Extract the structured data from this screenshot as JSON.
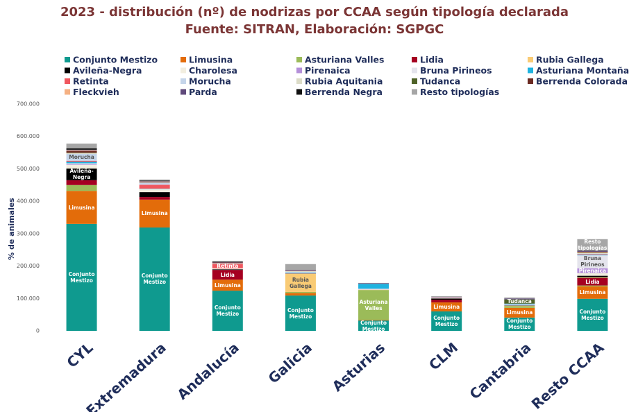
{
  "chart_data": {
    "type": "stacked_bar",
    "title": "2023 - distribución (nº) de nodrizas por CCAA según tipología declarada",
    "subtitle": "Fuente: SITRAN, Elaboración: SGPGC",
    "y_label": "% de animales",
    "categories": [
      "CYL",
      "Extremadura",
      "Andalucía",
      "Galicia",
      "Asturias",
      "CLM",
      "Cantabria",
      "Resto CCAA"
    ],
    "ylim": [
      0,
      700000
    ],
    "yticks": [
      {
        "value": 0,
        "label": "0"
      },
      {
        "value": 100000,
        "label": "100.000"
      },
      {
        "value": 200000,
        "label": "200.000"
      },
      {
        "value": 300000,
        "label": "300.000"
      },
      {
        "value": 400000,
        "label": "400.000"
      },
      {
        "value": 500000,
        "label": "500.000"
      },
      {
        "value": 600000,
        "label": "600.000"
      },
      {
        "value": 700000,
        "label": "700.000"
      }
    ],
    "grid": false,
    "legend": "top",
    "series": [
      {
        "name": "Conjunto Mestizo",
        "color": "#0f9a8f",
        "values": [
          330000,
          319000,
          124000,
          109000,
          32000,
          60000,
          41000,
          99000
        ],
        "segment_labels": [
          "Conjunto Mestizo",
          "Conjunto Mestizo",
          "Conjunto Mestizo",
          "Conjunto Mestizo",
          "Conjunto Mestizo",
          "Conjunto Mestizo",
          "Conjunto Mestizo",
          "Conjunto Mestizo"
        ]
      },
      {
        "name": "Limusina",
        "color": "#e36c0a",
        "values": [
          102000,
          86000,
          34000,
          8000,
          2000,
          28000,
          30000,
          38000
        ],
        "segment_labels": [
          "Limusina",
          "Limusina",
          "Limusina",
          null,
          null,
          "Limusina",
          "Limusina",
          "Limusina"
        ]
      },
      {
        "name": "Asturiana Valles",
        "color": "#9bbb59",
        "values": [
          18000,
          0,
          0,
          3000,
          92000,
          0,
          5000,
          3000
        ],
        "segment_labels": [
          null,
          null,
          null,
          null,
          "Asturiana Valles",
          null,
          null,
          null
        ]
      },
      {
        "name": "Lidia",
        "color": "#a50021",
        "values": [
          15000,
          8000,
          30000,
          0,
          0,
          8000,
          0,
          23000
        ],
        "segment_labels": [
          null,
          null,
          "Lidia",
          null,
          null,
          null,
          null,
          "Lidia"
        ]
      },
      {
        "name": "Rubia Gallega",
        "color": "#f9cb75",
        "values": [
          0,
          0,
          0,
          56000,
          1000,
          0,
          1000,
          2000
        ],
        "segment_labels": [
          null,
          null,
          null,
          "Rubia Gallega",
          null,
          null,
          null,
          null
        ]
      },
      {
        "name": "Avileña-Negra",
        "color": "#000000",
        "values": [
          36000,
          15000,
          2000,
          1000,
          0,
          4000,
          1000,
          5000
        ],
        "segment_labels": [
          "Avileña-Negra",
          null,
          null,
          null,
          null,
          null,
          null,
          null
        ]
      },
      {
        "name": "Charolesa",
        "color": "#f2eee0",
        "values": [
          11000,
          10000,
          3000,
          2000,
          1000,
          2000,
          2000,
          8000
        ]
      },
      {
        "name": "Pirenaica",
        "color": "#b48fd9",
        "values": [
          2000,
          0,
          0,
          1000,
          1000,
          0,
          1000,
          15000
        ],
        "segment_labels": [
          null,
          null,
          null,
          null,
          null,
          null,
          null,
          "Pirenaica"
        ]
      },
      {
        "name": "Bruna Pirineos",
        "color": "#e4e4ec",
        "values": [
          3000,
          0,
          0,
          1000,
          1000,
          0,
          1000,
          40000
        ],
        "segment_labels": [
          null,
          null,
          null,
          null,
          null,
          null,
          null,
          "Bruna Pirineos"
        ]
      },
      {
        "name": "Asturiana Montaña",
        "color": "#1fb3e0",
        "values": [
          5000,
          1000,
          0,
          1000,
          15000,
          0,
          2000,
          2000
        ]
      },
      {
        "name": "Retinta",
        "color": "#f0575f",
        "values": [
          3000,
          12000,
          14000,
          0,
          0,
          1000,
          0,
          2000
        ],
        "segment_labels": [
          null,
          null,
          "Retinta",
          null,
          null,
          null,
          null,
          null
        ]
      },
      {
        "name": "Morucha",
        "color": "#c5d5ea",
        "values": [
          21000,
          6000,
          1000,
          0,
          0,
          1000,
          0,
          1000
        ],
        "segment_labels": [
          "Morucha",
          null,
          null,
          null,
          null,
          null,
          null,
          null
        ]
      },
      {
        "name": "Rubia Aquitania",
        "color": "#dcdcc8",
        "values": [
          3000,
          1000,
          1000,
          2000,
          0,
          0,
          0,
          2000
        ]
      },
      {
        "name": "Tudanca",
        "color": "#4f6228",
        "values": [
          1000,
          0,
          0,
          0,
          0,
          0,
          13000,
          1000
        ],
        "segment_labels": [
          null,
          null,
          null,
          null,
          null,
          null,
          "Tudanca",
          null
        ]
      },
      {
        "name": "Berrenda Colorada",
        "color": "#6b2a22",
        "values": [
          5000,
          2000,
          2000,
          0,
          0,
          0,
          0,
          1000
        ]
      },
      {
        "name": "Fleckvieh",
        "color": "#f5b183",
        "values": [
          2000,
          1000,
          0,
          1000,
          0,
          0,
          0,
          2000
        ]
      },
      {
        "name": "Parda",
        "color": "#604a7b",
        "values": [
          2000,
          1000,
          1000,
          3000,
          2000,
          1000,
          3000,
          3000
        ]
      },
      {
        "name": "Berrenda Negra",
        "color": "#111111",
        "values": [
          4000,
          2000,
          1000,
          0,
          0,
          0,
          0,
          1000
        ]
      },
      {
        "name": "Resto tipologías",
        "color": "#a6a6a6",
        "values": [
          15000,
          3000,
          3000,
          18000,
          1000,
          2000,
          3000,
          35000
        ],
        "segment_labels": [
          null,
          null,
          null,
          null,
          null,
          null,
          null,
          "Resto tipologías"
        ]
      }
    ]
  }
}
